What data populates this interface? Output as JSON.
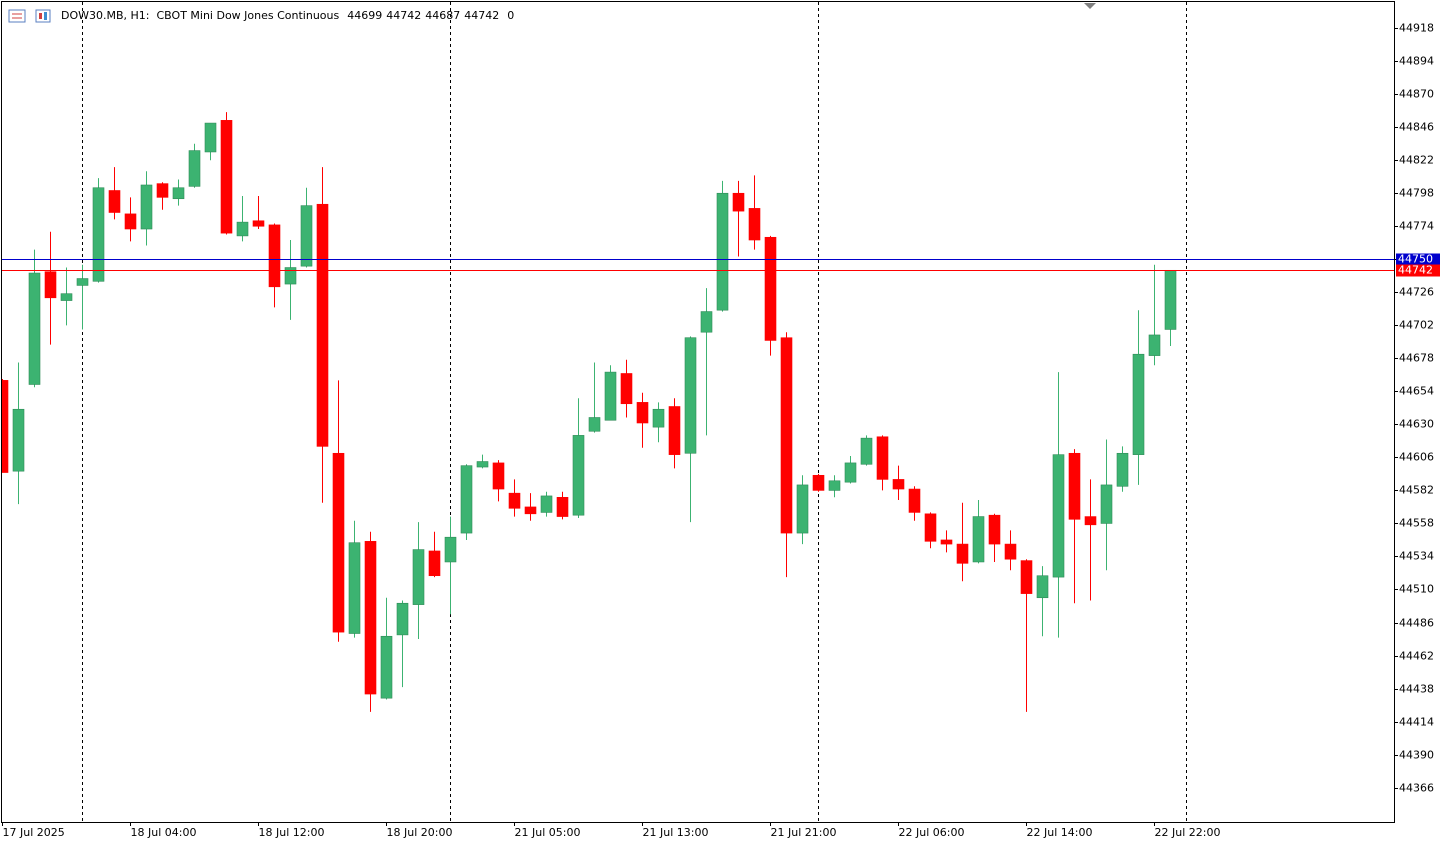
{
  "chart_data": {
    "type": "candlestick",
    "title": "DOW30.MB, H1:  CBOT Mini Dow Jones Continuous",
    "readout": [
      44699,
      44742,
      44687,
      44742,
      0
    ],
    "categories": [
      "17 Jul 2025",
      null,
      null,
      null,
      null,
      null,
      null,
      null,
      "18 Jul 04:00",
      null,
      null,
      null,
      null,
      null,
      null,
      null,
      "18 Jul 12:00",
      null,
      null,
      null,
      null,
      null,
      null,
      null,
      "18 Jul 20:00",
      null,
      null,
      null,
      null,
      null,
      null,
      null,
      "21 Jul 05:00",
      null,
      null,
      null,
      null,
      null,
      null,
      null,
      "21 Jul 13:00",
      null,
      null,
      null,
      null,
      null,
      null,
      null,
      "21 Jul 21:00",
      null,
      null,
      null,
      null,
      null,
      null,
      null,
      "22 Jul 06:00",
      null,
      null,
      null,
      null,
      null,
      null,
      null,
      "22 Jul 14:00",
      null,
      null,
      null,
      null,
      null,
      null,
      null,
      "22 Jul 22:00",
      null
    ],
    "open": [
      44662,
      44596,
      44659,
      44741,
      44720,
      44731,
      44734,
      44800,
      44783,
      44772,
      44805,
      44794,
      44803,
      44828,
      44851,
      44767,
      44778,
      44775,
      44732,
      44745,
      44790,
      44609,
      44478,
      44545,
      44431,
      44477,
      44499,
      44538,
      44530,
      44551,
      44599,
      44602,
      44580,
      44570,
      44566,
      44577,
      44564,
      44625,
      44633,
      44667,
      44646,
      44628,
      44643,
      44609,
      44697,
      44713,
      44798,
      44787,
      44766,
      44693,
      44551,
      44593,
      44582,
      44588,
      44601,
      44621,
      44590,
      44583,
      44565,
      44546,
      44543,
      44530,
      44564,
      44543,
      44531,
      44504,
      44519,
      44609,
      44563,
      44558,
      44585,
      44608,
      44680,
      44699
    ],
    "high": [
      44663,
      44675,
      44757,
      44770,
      44744,
      44746,
      44809,
      44817,
      44795,
      44814,
      44806,
      44808,
      44834,
      44849,
      44857,
      44796,
      44796,
      44776,
      44764,
      44802,
      44817,
      44662,
      44560,
      44552,
      44504,
      44502,
      44559,
      44552,
      44563,
      44601,
      44608,
      44604,
      44590,
      44580,
      44581,
      44581,
      44649,
      44675,
      44673,
      44677,
      44653,
      44646,
      44649,
      44694,
      44729,
      44807,
      44807,
      44811,
      44767,
      44697,
      44593,
      44594,
      44593,
      44607,
      44622,
      44622,
      44600,
      44585,
      44566,
      44553,
      44573,
      44575,
      44565,
      44553,
      44532,
      44527,
      44668,
      44612,
      44590,
      44619,
      44614,
      44713,
      44746,
      44742
    ],
    "low": [
      44595,
      44572,
      44657,
      44688,
      44702,
      44699,
      44733,
      44779,
      44763,
      44760,
      44786,
      44789,
      44802,
      44822,
      44768,
      44763,
      44772,
      44715,
      44706,
      44744,
      44573,
      44472,
      44475,
      44421,
      44430,
      44439,
      44474,
      44519,
      44492,
      44546,
      44598,
      44574,
      44563,
      44560,
      44563,
      44561,
      44562,
      44624,
      44633,
      44635,
      44613,
      44617,
      44598,
      44559,
      44622,
      44712,
      44752,
      44757,
      44680,
      44519,
      44543,
      44581,
      44577,
      44587,
      44600,
      44582,
      44575,
      44560,
      44540,
      44537,
      44516,
      44529,
      44530,
      44524,
      44421,
      44476,
      44475,
      44500,
      44502,
      44524,
      44581,
      44586,
      44673,
      44687
    ],
    "close": [
      44595,
      44641,
      44740,
      44722,
      44725,
      44736,
      44802,
      44784,
      44772,
      44804,
      44795,
      44802,
      44829,
      44849,
      44769,
      44777,
      44774,
      44730,
      44744,
      44789,
      44614,
      44479,
      44544,
      44434,
      44476,
      44500,
      44539,
      44520,
      44548,
      44600,
      44603,
      44583,
      44569,
      44565,
      44578,
      44563,
      44622,
      44635,
      44668,
      44645,
      44631,
      44641,
      44608,
      44693,
      44712,
      44798,
      44785,
      44764,
      44691,
      44551,
      44586,
      44582,
      44589,
      44602,
      44620,
      44590,
      44583,
      44566,
      44545,
      44543,
      44529,
      44563,
      44543,
      44532,
      44507,
      44520,
      44608,
      44561,
      44557,
      44586,
      44609,
      44681,
      44695,
      44742
    ],
    "up_color": "#3cb371",
    "down_color": "#ff0000",
    "ylim": [
      44341,
      44937
    ],
    "yticks": [
      44366,
      44390,
      44414,
      44438,
      44462,
      44486,
      44510,
      44534,
      44558,
      44582,
      44606,
      44630,
      44654,
      44678,
      44702,
      44726,
      44750,
      44774,
      44798,
      44822,
      44846,
      44870,
      44894,
      44918
    ],
    "price_lines": [
      {
        "value": 44750,
        "color": "#0000cd"
      },
      {
        "value": 44742,
        "color": "#ff0000"
      }
    ]
  }
}
